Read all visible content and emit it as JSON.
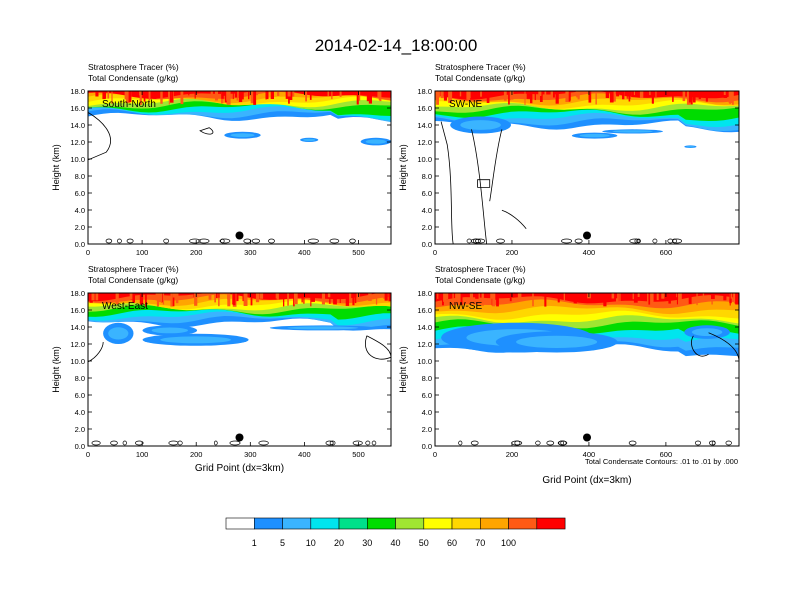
{
  "figure": {
    "title": "2014-02-14_18:00:00",
    "footnote": "Total Condensate Contours: .01 to .01 by .000"
  },
  "colorbar": {
    "colors": [
      "#ffffff",
      "#1e90ff",
      "#3ab4ff",
      "#00e5ee",
      "#00e08a",
      "#00dc00",
      "#a0e632",
      "#ffff00",
      "#ffd700",
      "#ffa500",
      "#ff5a14",
      "#ff0000"
    ],
    "labels": [
      "1",
      "5",
      "10",
      "20",
      "30",
      "40",
      "50",
      "60",
      "70",
      "100"
    ]
  },
  "chart_data": [
    {
      "type": "heatmap",
      "cross_section": "South-North",
      "subtitle_left": "Stratosphere Tracer   (%)",
      "subtitle_left2": "Total Condensate   (g/kg)",
      "xlabel": "",
      "ylabel": "Height (km)",
      "xlim": [
        0,
        560
      ],
      "ylim": [
        0,
        18
      ],
      "xticks": [
        "0",
        "100",
        "200",
        "300",
        "400",
        "500"
      ],
      "yticks": [
        "0.0",
        "2.0",
        "4.0",
        "6.0",
        "8.0",
        "10.0",
        "12.0",
        "14.0",
        "16.0",
        "18.0"
      ],
      "tracer_base_km": 15.0,
      "marker_x": 280,
      "marker_y_km": 1.0
    },
    {
      "type": "heatmap",
      "cross_section": "SW-NE",
      "subtitle_left": "Stratosphere Tracer   (%)",
      "subtitle_left2": "Total Condensate   (g/kg)",
      "xlabel": "",
      "ylabel": "Height (km)",
      "xlim": [
        0,
        790
      ],
      "ylim": [
        0,
        18
      ],
      "xticks": [
        "0",
        "200",
        "400",
        "600"
      ],
      "yticks": [
        "0.0",
        "2.0",
        "4.0",
        "6.0",
        "8.0",
        "10.0",
        "12.0",
        "14.0",
        "16.0",
        "18.0"
      ],
      "tracer_base_km": 14.0,
      "marker_x": 395,
      "marker_y_km": 1.0
    },
    {
      "type": "heatmap",
      "cross_section": "West-East",
      "subtitle_left": "Stratosphere Tracer   (%)",
      "subtitle_left2": "Total Condensate   (g/kg)",
      "xlabel": "Grid Point (dx=3km)",
      "ylabel": "Height (km)",
      "xlim": [
        0,
        560
      ],
      "ylim": [
        0,
        18
      ],
      "xticks": [
        "0",
        "100",
        "200",
        "300",
        "400",
        "500"
      ],
      "yticks": [
        "0.0",
        "2.0",
        "4.0",
        "6.0",
        "8.0",
        "10.0",
        "12.0",
        "14.0",
        "16.0",
        "18.0"
      ],
      "tracer_base_km": 14.5,
      "marker_x": 280,
      "marker_y_km": 1.0
    },
    {
      "type": "heatmap",
      "cross_section": "NW-SE",
      "subtitle_left": "Stratosphere Tracer   (%)",
      "subtitle_left2": "Total Condensate   (g/kg)",
      "xlabel": "Grid Point (dx=3km)",
      "ylabel": "Height (km)",
      "xlim": [
        0,
        790
      ],
      "ylim": [
        0,
        18
      ],
      "xticks": [
        "0",
        "200",
        "400",
        "600"
      ],
      "yticks": [
        "0.0",
        "2.0",
        "4.0",
        "6.0",
        "8.0",
        "10.0",
        "12.0",
        "14.0",
        "16.0",
        "18.0"
      ],
      "tracer_base_km": 11.5,
      "marker_x": 395,
      "marker_y_km": 1.0
    }
  ]
}
